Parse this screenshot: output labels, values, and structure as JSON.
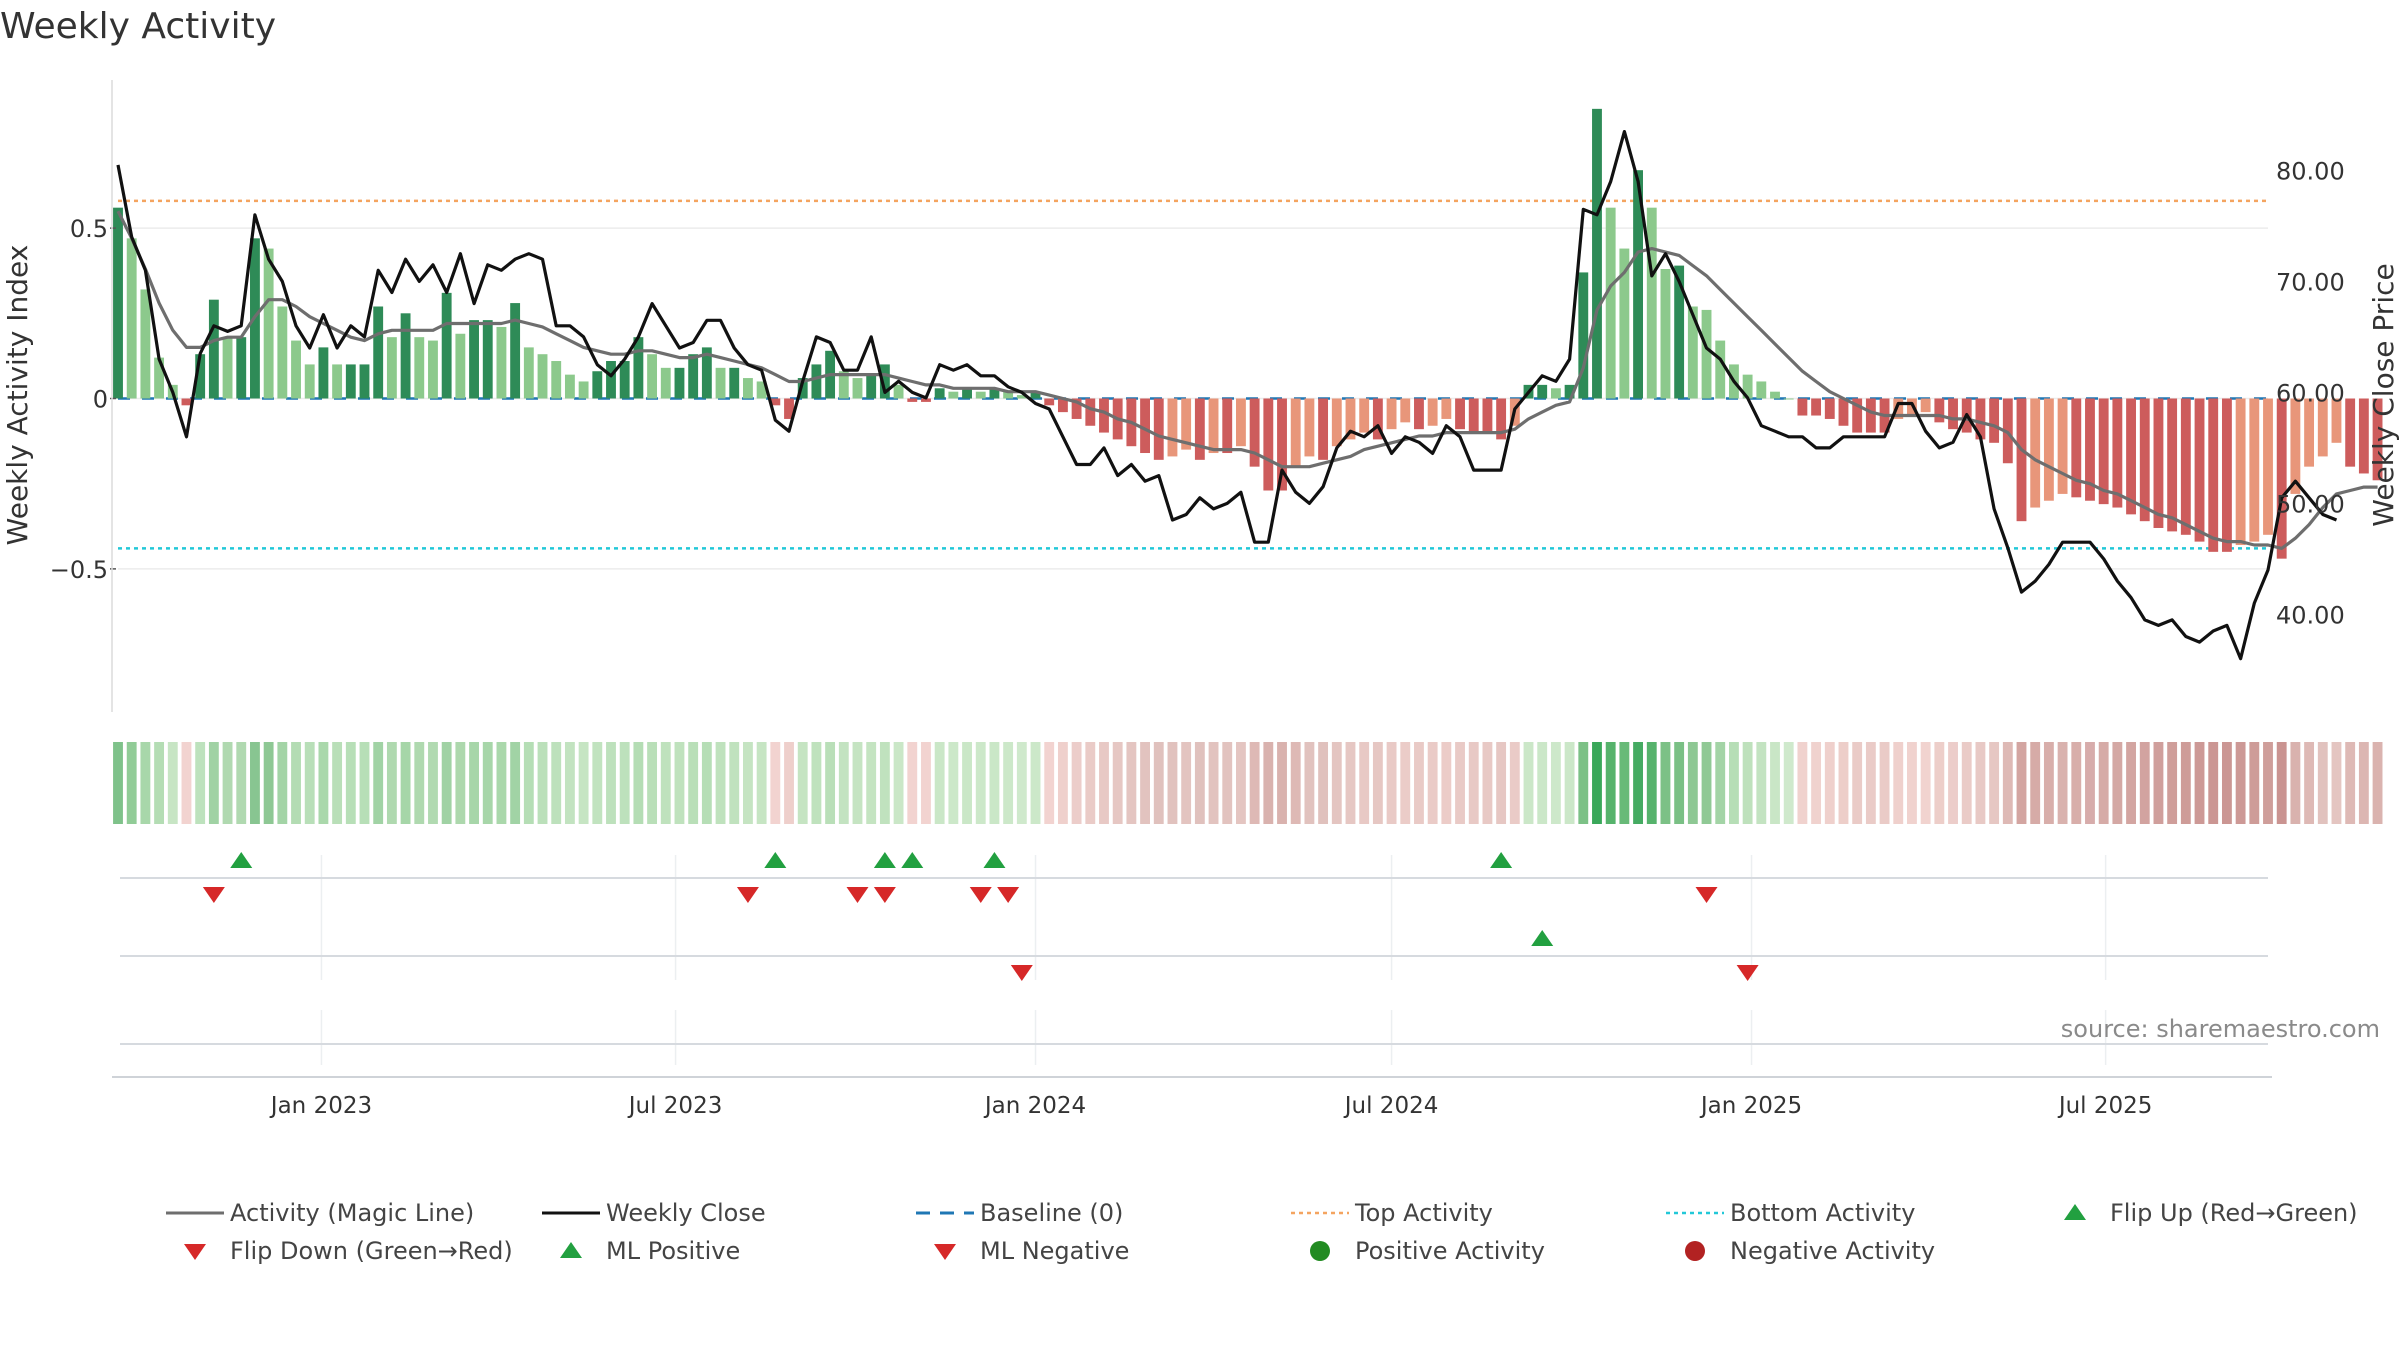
{
  "title": "Weekly Activity",
  "source": "source: sharemaestro.com",
  "colors": {
    "green_dark": "#2e8b57",
    "green_light": "#8cc98c",
    "red_dark": "#cd5c5c",
    "red_light": "#e8967a",
    "magic_line": "#6e6e6e",
    "close_line": "#111111",
    "baseline": "#1f77b4",
    "top_line": "#f4a460",
    "bottom_line": "#22c8d8",
    "marker_up": "#22a040",
    "marker_down": "#d62828",
    "pos_dot": "#228b22",
    "neg_dot": "#b22222"
  },
  "chart_data": {
    "type": "bar",
    "ylabel": "Weekly Activity Index",
    "y2label": "Weekly Close Price",
    "ylim": [
      -0.92,
      0.92
    ],
    "y2lim": [
      31.2,
      87.7
    ],
    "yticks": [
      0.5,
      0,
      -0.5
    ],
    "ytick_labels": [
      "0.5",
      "0",
      "−0.5"
    ],
    "y2ticks": [
      80,
      70,
      60,
      50,
      40
    ],
    "y2tick_labels": [
      "80.00",
      "70.00",
      "60.00",
      "50.00",
      "40.00"
    ],
    "x_start": "2022-09-19",
    "x_end": "2025-09-22",
    "xticks": [
      "2023-01-01",
      "2023-07-01",
      "2024-01-01",
      "2024-07-01",
      "2025-01-01",
      "2025-07-01"
    ],
    "xtick_labels": [
      "Jan 2023",
      "Jul 2023",
      "Jan 2024",
      "Jul 2024",
      "Jan 2025",
      "Jul 2025"
    ],
    "top_activity": 0.58,
    "bottom_activity": -0.44,
    "baseline": 0,
    "activity": [
      0.56,
      0.47,
      0.32,
      0.12,
      0.04,
      -0.02,
      0.13,
      0.29,
      0.18,
      0.18,
      0.47,
      0.44,
      0.27,
      0.17,
      0.1,
      0.15,
      0.1,
      0.1,
      0.1,
      0.27,
      0.18,
      0.25,
      0.18,
      0.17,
      0.31,
      0.19,
      0.23,
      0.23,
      0.21,
      0.28,
      0.15,
      0.13,
      0.11,
      0.07,
      0.05,
      0.08,
      0.11,
      0.11,
      0.18,
      0.13,
      0.09,
      0.09,
      0.13,
      0.15,
      0.09,
      0.09,
      0.06,
      0.05,
      -0.02,
      -0.06,
      0.06,
      0.1,
      0.14,
      0.08,
      0.06,
      0.07,
      0.1,
      0.04,
      -0.01,
      -0.01,
      0.03,
      0.02,
      0.03,
      0.02,
      0.03,
      0.02,
      0.01,
      0.02,
      -0.02,
      -0.04,
      -0.06,
      -0.08,
      -0.1,
      -0.12,
      -0.14,
      -0.16,
      -0.18,
      -0.17,
      -0.15,
      -0.18,
      -0.16,
      -0.16,
      -0.14,
      -0.2,
      -0.27,
      -0.27,
      -0.2,
      -0.17,
      -0.18,
      -0.14,
      -0.12,
      -0.1,
      -0.12,
      -0.09,
      -0.07,
      -0.09,
      -0.08,
      -0.06,
      -0.09,
      -0.1,
      -0.1,
      -0.12,
      -0.08,
      0.04,
      0.04,
      0.03,
      0.04,
      0.37,
      0.85,
      0.56,
      0.44,
      0.67,
      0.56,
      0.38,
      0.39,
      0.27,
      0.26,
      0.17,
      0.1,
      0.07,
      0.05,
      0.02,
      0.0,
      -0.05,
      -0.05,
      -0.06,
      -0.08,
      -0.1,
      -0.1,
      -0.1,
      -0.06,
      -0.05,
      -0.04,
      -0.07,
      -0.09,
      -0.1,
      -0.12,
      -0.13,
      -0.19,
      -0.36,
      -0.32,
      -0.3,
      -0.28,
      -0.29,
      -0.3,
      -0.31,
      -0.32,
      -0.34,
      -0.36,
      -0.38,
      -0.39,
      -0.4,
      -0.42,
      -0.45,
      -0.45,
      -0.43,
      -0.42,
      -0.4,
      -0.47,
      -0.28,
      -0.2,
      -0.17,
      -0.13,
      -0.2,
      -0.22,
      -0.24
    ],
    "magic_line": [
      0.55,
      0.47,
      0.38,
      0.28,
      0.2,
      0.15,
      0.15,
      0.17,
      0.18,
      0.18,
      0.24,
      0.29,
      0.29,
      0.27,
      0.24,
      0.22,
      0.2,
      0.18,
      0.17,
      0.19,
      0.2,
      0.2,
      0.2,
      0.2,
      0.22,
      0.22,
      0.22,
      0.22,
      0.22,
      0.23,
      0.22,
      0.21,
      0.19,
      0.17,
      0.15,
      0.14,
      0.13,
      0.13,
      0.14,
      0.14,
      0.13,
      0.12,
      0.12,
      0.13,
      0.12,
      0.11,
      0.1,
      0.09,
      0.07,
      0.05,
      0.05,
      0.06,
      0.07,
      0.07,
      0.07,
      0.07,
      0.07,
      0.06,
      0.05,
      0.04,
      0.04,
      0.03,
      0.03,
      0.03,
      0.03,
      0.02,
      0.02,
      0.02,
      0.01,
      0.0,
      -0.01,
      -0.03,
      -0.04,
      -0.06,
      -0.07,
      -0.09,
      -0.11,
      -0.12,
      -0.13,
      -0.14,
      -0.15,
      -0.15,
      -0.15,
      -0.16,
      -0.18,
      -0.2,
      -0.2,
      -0.2,
      -0.19,
      -0.18,
      -0.17,
      -0.15,
      -0.14,
      -0.13,
      -0.12,
      -0.11,
      -0.11,
      -0.1,
      -0.1,
      -0.1,
      -0.1,
      -0.1,
      -0.09,
      -0.06,
      -0.04,
      -0.02,
      -0.01,
      0.09,
      0.26,
      0.33,
      0.37,
      0.43,
      0.44,
      0.43,
      0.42,
      0.39,
      0.36,
      0.32,
      0.28,
      0.24,
      0.2,
      0.16,
      0.12,
      0.08,
      0.05,
      0.02,
      0.0,
      -0.02,
      -0.04,
      -0.05,
      -0.05,
      -0.05,
      -0.05,
      -0.05,
      -0.06,
      -0.06,
      -0.07,
      -0.08,
      -0.1,
      -0.15,
      -0.18,
      -0.2,
      -0.22,
      -0.24,
      -0.25,
      -0.27,
      -0.28,
      -0.3,
      -0.32,
      -0.34,
      -0.35,
      -0.37,
      -0.39,
      -0.41,
      -0.42,
      -0.42,
      -0.43,
      -0.43,
      -0.44,
      -0.41,
      -0.37,
      -0.32,
      -0.28,
      -0.27,
      -0.26,
      -0.26
    ],
    "close": [
      80.5,
      74.0,
      71.0,
      63.0,
      60.0,
      56.0,
      63.5,
      66.0,
      65.5,
      66.0,
      76.0,
      72.0,
      70.0,
      66.0,
      64.0,
      67.0,
      64.0,
      66.0,
      65.0,
      71.0,
      69.0,
      72.0,
      70.0,
      71.5,
      69.0,
      72.5,
      68.0,
      71.5,
      71.0,
      72.0,
      72.5,
      72.0,
      66.0,
      66.0,
      65.0,
      62.5,
      61.5,
      63.0,
      65.0,
      68.0,
      66.0,
      64.0,
      64.5,
      66.5,
      66.5,
      64.0,
      62.5,
      62.0,
      57.5,
      56.5,
      61.0,
      65.0,
      64.5,
      62.0,
      62.0,
      65.0,
      60.0,
      61.0,
      60.0,
      59.5,
      62.5,
      62.0,
      62.5,
      61.5,
      61.5,
      60.5,
      60.0,
      59.0,
      58.5,
      56.0,
      53.5,
      53.5,
      55.0,
      52.5,
      53.5,
      52.0,
      52.5,
      48.5,
      49.0,
      50.5,
      49.5,
      50.0,
      51.0,
      46.5,
      46.5,
      53.0,
      51.0,
      50.0,
      51.5,
      55.0,
      56.5,
      56.0,
      57.0,
      54.5,
      56.0,
      55.5,
      54.5,
      57.0,
      56.0,
      53.0,
      53.0,
      53.0,
      58.5,
      60.0,
      61.5,
      61.0,
      63.0,
      76.5,
      76.0,
      79.0,
      83.5,
      79.0,
      70.5,
      72.5,
      70.0,
      67.0,
      64.0,
      63.0,
      61.0,
      59.5,
      57.0,
      56.5,
      56.0,
      56.0,
      55.0,
      55.0,
      56.0,
      56.0,
      56.0,
      56.0,
      59.0,
      59.0,
      56.5,
      55.0,
      55.5,
      58.0,
      56.0,
      49.5,
      46.0,
      42.0,
      43.0,
      44.5,
      46.5,
      46.5,
      46.5,
      45.0,
      43.0,
      41.5,
      39.5,
      39.0,
      39.5,
      38.0,
      37.5,
      38.5,
      39.0,
      36.0,
      41.0,
      44.0,
      50.5,
      52.0,
      50.5,
      49.0,
      48.5
    ],
    "strip_colors": [
      "#7fc28a",
      "#91cc97",
      "#a8d7aa",
      "#b4ddb4",
      "#c7e5c4",
      "#f2d3d0",
      "#bde2bd",
      "#a0d2a4",
      "#b0d9b0",
      "#b0d9b0",
      "#88c591",
      "#8ec894",
      "#a3d4a6",
      "#b3dcb3",
      "#b8dfb8",
      "#aad8ab",
      "#b9dfb8",
      "#b7dfb7",
      "#b7dfb7",
      "#a1d3a5",
      "#afd9af",
      "#a6d6a8",
      "#afd9af",
      "#b1dab1",
      "#a0d2a4",
      "#add8ad",
      "#a7d6a9",
      "#a7d6a9",
      "#aad8ab",
      "#a1d3a5",
      "#b5deb5",
      "#bbe0ba",
      "#bde1bc",
      "#c2e3c0",
      "#c6e5c3",
      "#c1e3bf",
      "#bde1bc",
      "#bde1bc",
      "#b4ddb4",
      "#b9dfb8",
      "#bfe2bd",
      "#bfe2bd",
      "#b9dfb8",
      "#b6deb6",
      "#bfe2bd",
      "#c0e2be",
      "#c5e4c2",
      "#c6e5c3",
      "#f2d3d0",
      "#eecfcb",
      "#c5e4c2",
      "#bfe2bd",
      "#b9dfb8",
      "#c3e3c1",
      "#c5e4c2",
      "#c4e4c1",
      "#c0e2be",
      "#cae7c7",
      "#f2d3d0",
      "#f2d3d0",
      "#cae7c7",
      "#cce8c9",
      "#cae7c7",
      "#cce8c9",
      "#cae7c7",
      "#cce8c9",
      "#cfe9cc",
      "#cce8c9",
      "#f2d3d0",
      "#efd0cc",
      "#eccdca",
      "#eacbc7",
      "#e8c9c5",
      "#e6c7c3",
      "#e4c5c1",
      "#e2c3bf",
      "#e0c1bd",
      "#e1c2be",
      "#e3c4c0",
      "#e0c1bd",
      "#e2c3bf",
      "#e2c3bf",
      "#e4c5c1",
      "#deb9b5",
      "#d9b2ae",
      "#d9b2ae",
      "#deb9b5",
      "#e1c2be",
      "#e0c1bd",
      "#e4c5c1",
      "#e6c7c3",
      "#e8c9c5",
      "#e6c7c3",
      "#e9cac6",
      "#ebccc8",
      "#e9cac6",
      "#eacbc7",
      "#ecccc8",
      "#e9cac6",
      "#e8c9c5",
      "#e8c9c5",
      "#e6c7c3",
      "#eacbc7",
      "#cbe7c8",
      "#cbe7c8",
      "#cde8ca",
      "#cbe7c8",
      "#7cc186",
      "#3aa85a",
      "#56b36c",
      "#68ba78",
      "#45ab62",
      "#56b36c",
      "#7cc186",
      "#7ac085",
      "#8ec894",
      "#90c995",
      "#a3d4a6",
      "#b6deb6",
      "#bee1bc",
      "#c3e3c1",
      "#c9e6c6",
      "#cfe9cc",
      "#f0d2ce",
      "#f0d2ce",
      "#efd0cc",
      "#edcec9",
      "#eacbc7",
      "#eacbc7",
      "#eacbc7",
      "#efd0cc",
      "#f0d2ce",
      "#f1d3cf",
      "#edcec9",
      "#eccdca",
      "#eacbc7",
      "#e8c9c5",
      "#e6c7c3",
      "#deb9b5",
      "#d3a5a1",
      "#d6aba7",
      "#d8aeaa",
      "#d9b2ae",
      "#d8aeaa",
      "#d7acab",
      "#d6aba7",
      "#d4a8a4",
      "#d3a5a1",
      "#d2a3a0",
      "#d09f9c",
      "#cf9e9a",
      "#ce9c98",
      "#cd9996",
      "#cb9693",
      "#cb9693",
      "#cd9996",
      "#ce9c98",
      "#cf9e9a",
      "#ca9491",
      "#d9b2ae",
      "#deb9b5",
      "#e1c2be",
      "#e4c5c1",
      "#deb9b5",
      "#dcb6b2",
      "#dab3af"
    ],
    "flip_up": [
      "2022-11-21",
      "2023-08-21",
      "2023-10-16",
      "2023-10-30",
      "2023-12-11",
      "2024-08-26"
    ],
    "flip_down": [
      "2022-11-07",
      "2023-08-07",
      "2023-10-02",
      "2023-10-16",
      "2023-12-04",
      "2023-12-18",
      "2024-12-09"
    ],
    "ml_positive": [
      "2024-09-16"
    ],
    "ml_negative": [
      "2023-12-25",
      "2024-12-30"
    ],
    "positive_activity": [],
    "negative_activity": [],
    "legend": [
      {
        "key": "magic",
        "label": "Activity (Magic Line)"
      },
      {
        "key": "close",
        "label": "Weekly Close"
      },
      {
        "key": "baseline",
        "label": "Baseline (0)"
      },
      {
        "key": "top",
        "label": "Top Activity"
      },
      {
        "key": "bottom",
        "label": "Bottom Activity"
      },
      {
        "key": "flipup",
        "label": "Flip Up (Red→Green)"
      },
      {
        "key": "flipdown",
        "label": "Flip Down (Green→Red)"
      },
      {
        "key": "mlpos",
        "label": "ML Positive"
      },
      {
        "key": "mlneg",
        "label": "ML Negative"
      },
      {
        "key": "posdot",
        "label": "Positive Activity"
      },
      {
        "key": "negdot",
        "label": "Negative Activity"
      }
    ]
  }
}
